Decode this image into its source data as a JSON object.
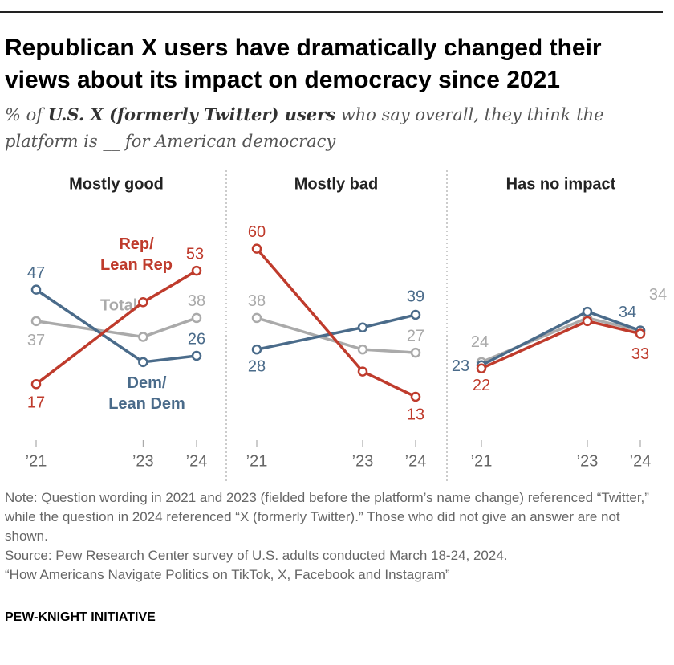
{
  "title": "Republican X users have dramatically changed their views about its impact on democracy since 2021",
  "subtitle": [
    "% of ",
    "U.S. X (formerly Twitter) users",
    " who say overall, they think the platform is __ for American democracy"
  ],
  "note": "Note: Question wording in 2021 and 2023 (fielded before the platform’s name change) referenced “Twitter,” while the question in 2024 referenced “X (formerly Twitter).” Those who did not give an answer are not shown.",
  "source": "Source: Pew Research Center survey of U.S. adults conducted March 18-24, 2024.",
  "report": "“How Americans Navigate Politics on TikTok, X, Facebook and Instagram”",
  "footer": "PEW-KNIGHT INITIATIVE",
  "chart_data": [
    {
      "type": "line",
      "title": "Mostly good",
      "x": [
        2021,
        2023,
        2024
      ],
      "xlim": [
        2021,
        2024
      ],
      "xticks": [
        {
          "value": 2021,
          "label": "’21"
        },
        {
          "value": 2023,
          "label": "’23"
        },
        {
          "value": 2024,
          "label": "’24"
        }
      ],
      "ylim": [
        0,
        65
      ],
      "series": [
        {
          "name": "Total",
          "color": "#aaaaaa",
          "values": [
            37,
            32,
            38
          ],
          "value_labels": [
            37,
            null,
            38
          ]
        },
        {
          "name": "Dem/ Lean Dem",
          "color": "#4a6b8a",
          "values": [
            47,
            24,
            26
          ],
          "value_labels": [
            47,
            null,
            26
          ]
        },
        {
          "name": "Rep/ Lean Rep",
          "color": "#bf3b2c",
          "values": [
            17,
            43,
            53
          ],
          "value_labels": [
            17,
            null,
            53
          ]
        }
      ]
    },
    {
      "type": "line",
      "title": "Mostly bad",
      "x": [
        2021,
        2023,
        2024
      ],
      "xlim": [
        2021,
        2024
      ],
      "xticks": [
        {
          "value": 2021,
          "label": "’21"
        },
        {
          "value": 2023,
          "label": "’23"
        },
        {
          "value": 2024,
          "label": "’24"
        }
      ],
      "ylim": [
        0,
        65
      ],
      "series": [
        {
          "color": "#aaaaaa",
          "values": [
            38,
            28,
            27
          ],
          "value_labels": [
            38,
            null,
            27
          ]
        },
        {
          "color": "#4a6b8a",
          "values": [
            28,
            35,
            39
          ],
          "value_labels": [
            28,
            null,
            39
          ]
        },
        {
          "color": "#bf3b2c",
          "values": [
            60,
            21,
            13
          ],
          "value_labels": [
            60,
            null,
            13
          ]
        }
      ]
    },
    {
      "type": "line",
      "title": "Has no impact",
      "x": [
        2021,
        2023,
        2024
      ],
      "xlim": [
        2021,
        2024
      ],
      "xticks": [
        {
          "value": 2021,
          "label": "’21"
        },
        {
          "value": 2023,
          "label": "’23"
        },
        {
          "value": 2024,
          "label": "’24"
        }
      ],
      "ylim": [
        0,
        65
      ],
      "series": [
        {
          "color": "#aaaaaa",
          "values": [
            24,
            38,
            34
          ],
          "value_labels": [
            24,
            null,
            34
          ]
        },
        {
          "color": "#4a6b8a",
          "values": [
            23,
            40,
            34
          ],
          "value_labels": [
            23,
            null,
            34
          ]
        },
        {
          "color": "#bf3b2c",
          "values": [
            22,
            37,
            33
          ],
          "value_labels": [
            22,
            null,
            33
          ]
        }
      ]
    }
  ]
}
